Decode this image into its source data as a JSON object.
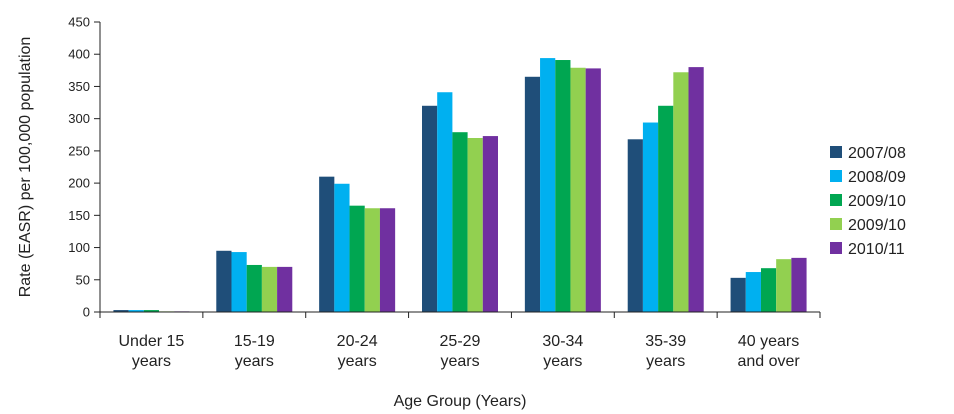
{
  "chart_data": {
    "type": "bar",
    "xlabel": "Age Group (Years)",
    "ylabel": "Rate (EASR) per 100,000 population",
    "ylim": [
      0,
      450
    ],
    "yticks": [
      0,
      50,
      100,
      150,
      200,
      250,
      300,
      350,
      400,
      450
    ],
    "categories": [
      [
        "Under 15",
        "years"
      ],
      [
        "15-19",
        "years"
      ],
      [
        "20-24",
        "years"
      ],
      [
        "25-29",
        "years"
      ],
      [
        "30-34",
        "years"
      ],
      [
        "35-39",
        "years"
      ],
      [
        "40 years",
        "and over"
      ]
    ],
    "series": [
      {
        "name": "2007/08",
        "color": "#1f4e79",
        "values": [
          3,
          95,
          210,
          320,
          365,
          268,
          53
        ]
      },
      {
        "name": "2008/09",
        "color": "#00b0f0",
        "values": [
          3,
          93,
          199,
          341,
          394,
          294,
          62
        ]
      },
      {
        "name": "2009/10",
        "color": "#00a651",
        "values": [
          3,
          73,
          165,
          279,
          391,
          320,
          68
        ]
      },
      {
        "name": "2009/10",
        "color": "#92d050",
        "values": [
          1,
          70,
          161,
          270,
          379,
          372,
          82
        ]
      },
      {
        "name": "2010/11",
        "color": "#7030a0",
        "values": [
          1,
          70,
          161,
          273,
          378,
          380,
          84
        ]
      }
    ],
    "grid": false,
    "legend_position": "right"
  }
}
